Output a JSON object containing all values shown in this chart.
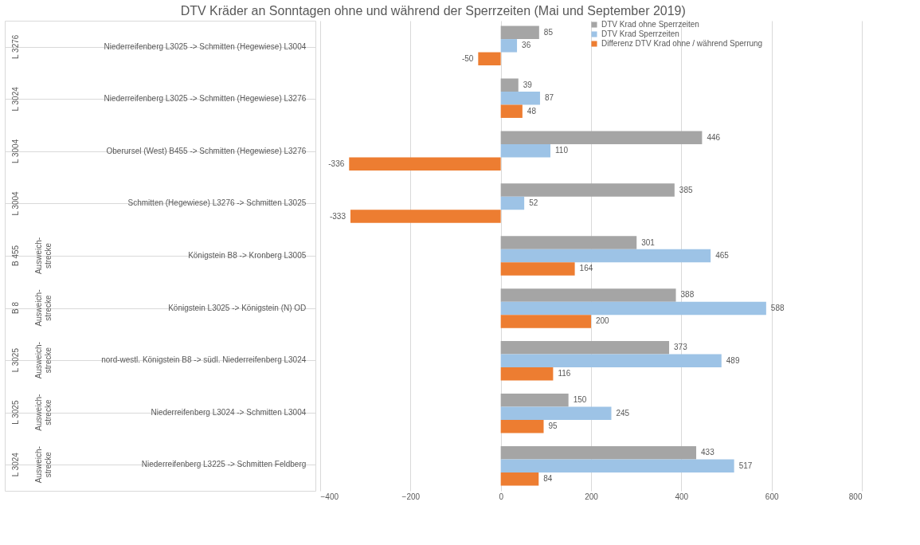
{
  "chart_data": {
    "type": "bar",
    "orientation": "horizontal",
    "title": "DTV Kräder an Sonntagen ohne und während der Sperrzeiten (Mai und September 2019)",
    "categories": [
      "Niederreifenberg L3025 -> Schmitten (Hegewiese) L3004",
      "Niederreifenberg L3025 -> Schmitten (Hegewiese) L3276",
      "Oberursel (West) B455 -> Schmitten (Hegewiese) L3276",
      "Schmitten (Hegewiese) L3276 -> Schmitten L3025",
      "Königstein B8 -> Kronberg L3005",
      "Königstein L3025 -> Königstein (N) OD",
      "nord-westl. Königstein B8 -> südl. Niederreifenberg L3024",
      "Niederreifenberg L3024 -> Schmitten L3004",
      "Niederreifenberg L3225 -> Schmitten Feldberg"
    ],
    "series": [
      {
        "name": "DTV Krad ohne Sperrzeiten",
        "color": "#a5a5a5",
        "values": [
          85,
          39,
          446,
          385,
          301,
          388,
          373,
          150,
          433
        ]
      },
      {
        "name": "DTV Krad Sperrzeiten",
        "color": "#9dc3e6",
        "values": [
          36,
          87,
          110,
          52,
          465,
          588,
          489,
          245,
          517
        ]
      },
      {
        "name": "Differenz DTV Krad ohne / während Sperrung",
        "color": "#ed7d31",
        "values": [
          -50,
          48,
          -336,
          -333,
          164,
          200,
          116,
          95,
          84
        ]
      }
    ],
    "xlim": [
      -400,
      800
    ],
    "xticks": [
      -400,
      -200,
      0,
      200,
      400,
      600,
      800
    ],
    "grid": "x",
    "legend": "top right",
    "data_labels": true,
    "annotations": [
      "L 3276",
      "L 3024",
      "L 3004",
      "L 3004",
      "B 455",
      "B 8",
      "L 3025",
      "L 3025",
      "L 3024",
      "Ausweich-strecke",
      "Ausweich-strecke",
      "Ausweich-strecke",
      "Ausweich-strecke",
      "Ausweich-strecke"
    ]
  }
}
